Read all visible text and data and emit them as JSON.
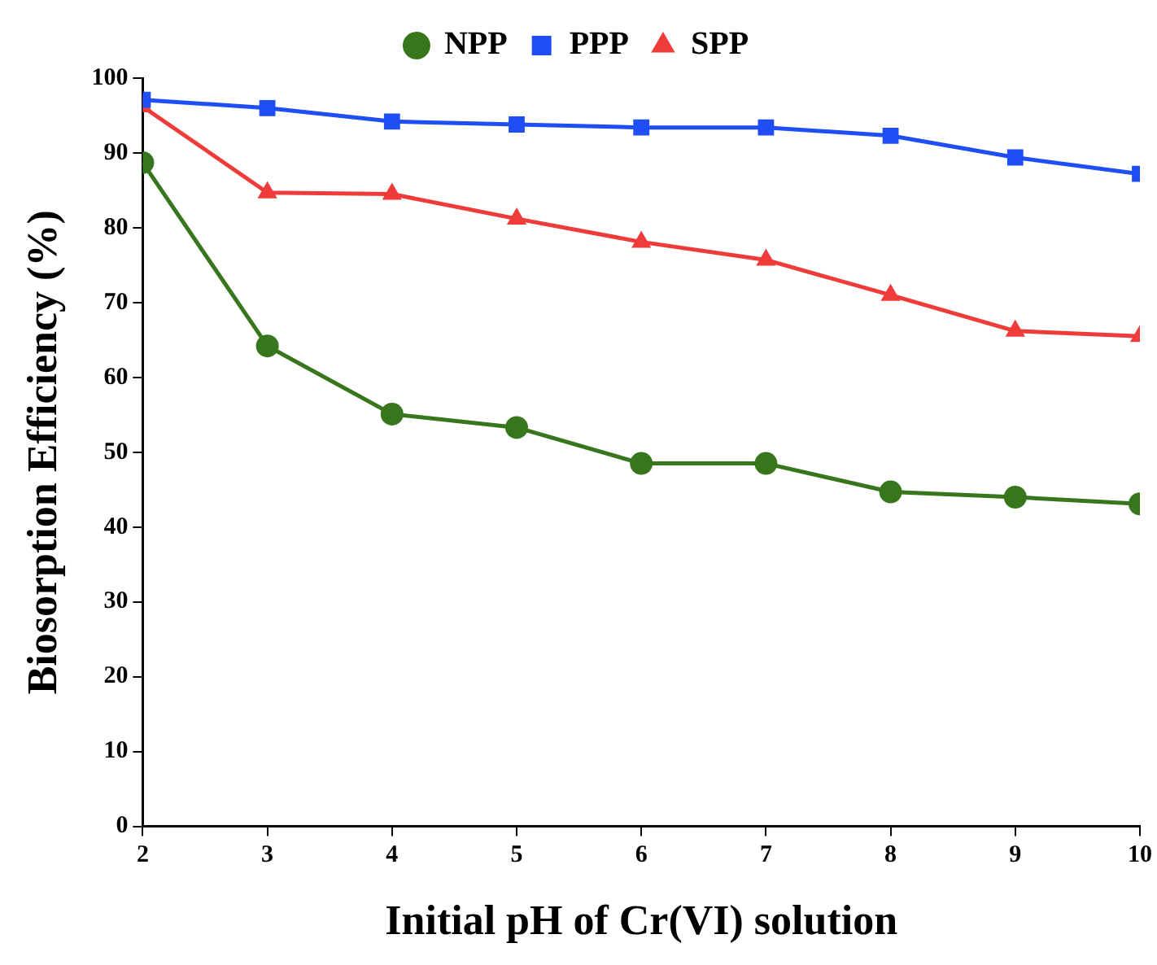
{
  "chart_data": {
    "type": "line",
    "xlabel": "Initial pH of Cr(VI) solution",
    "ylabel": "Biosorption Efficiency (%)",
    "x": [
      2,
      3,
      4,
      5,
      6,
      7,
      8,
      9,
      10
    ],
    "xlim": [
      2,
      10
    ],
    "xticks": [
      2,
      3,
      4,
      5,
      6,
      7,
      8,
      9,
      10
    ],
    "ylim": [
      0,
      100
    ],
    "yticks": [
      0,
      10,
      20,
      30,
      40,
      50,
      60,
      70,
      80,
      90,
      100
    ],
    "grid": false,
    "legend": "top",
    "line_style": "solid",
    "series": [
      {
        "name": "NPP",
        "color": "#38761d",
        "marker": "circle",
        "values": [
          88.7,
          64.2,
          55.1,
          53.3,
          48.5,
          48.5,
          44.7,
          44.0,
          43.1
        ]
      },
      {
        "name": "PPP",
        "color": "#1f4ef5",
        "marker": "square",
        "values": [
          97.1,
          96.0,
          94.2,
          93.8,
          93.4,
          93.4,
          92.3,
          89.4,
          87.2
        ]
      },
      {
        "name": "SPP",
        "color": "#f03b3b",
        "marker": "triangle",
        "values": [
          96.2,
          84.7,
          84.5,
          81.2,
          78.1,
          75.7,
          71.0,
          66.2,
          65.5
        ]
      }
    ]
  }
}
